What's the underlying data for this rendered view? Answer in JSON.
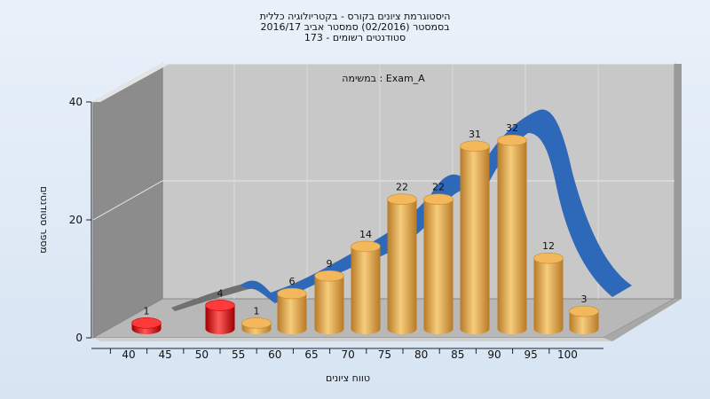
{
  "chart_data": {
    "type": "bar",
    "title_lines": [
      "היסטוגרמת ציונים בקורס - בקטריולוגיה כללית",
      "בסמסטר  (02/2016)  סמסטר אביב 2016/17",
      "סטודנטים רשומים - 173"
    ],
    "subtitle": "Exam_A : במשימה",
    "xlabel": "טווח ציונים",
    "ylabel": "מספר סטודנטים",
    "x_ticks": [
      "40",
      "45",
      "50",
      "55",
      "60",
      "65",
      "70",
      "75",
      "80",
      "85",
      "90",
      "95",
      "100"
    ],
    "y_ticks": [
      "0",
      "20",
      "40"
    ],
    "ylim": [
      0,
      40
    ],
    "categories": [
      "40-45",
      "50-55",
      "55-60",
      "60-65",
      "65-70",
      "70-75",
      "75-80",
      "80-85",
      "85-90",
      "90-95",
      "95-100",
      "100"
    ],
    "values": [
      1,
      4,
      1,
      6,
      9,
      14,
      22,
      22,
      31,
      32,
      12,
      3
    ],
    "value_labels": [
      "1",
      "4",
      "1",
      "6",
      "9",
      "14",
      "22",
      "22",
      "31",
      "32",
      "12",
      "3"
    ],
    "bar_colors": [
      "#e01010",
      "#e01010",
      "#e8a845",
      "#e8a845",
      "#e8a845",
      "#e8a845",
      "#e8a845",
      "#e8a845",
      "#e8a845",
      "#e8a845",
      "#e8a845",
      "#e8a845"
    ],
    "colors": {
      "failing": "#e01010",
      "passing": "#e8a845",
      "curve": "#2e68b8"
    },
    "grid": true,
    "legend": "none"
  }
}
